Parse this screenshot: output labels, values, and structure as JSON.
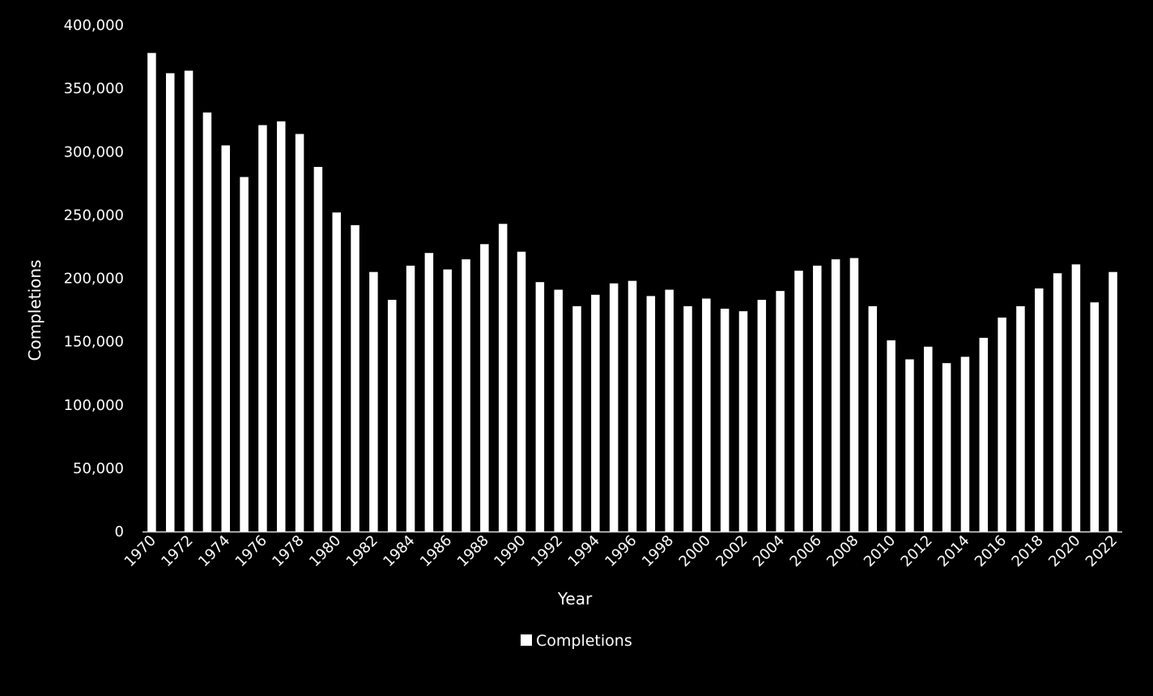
{
  "chart_data": {
    "type": "bar",
    "title": "",
    "xlabel": "Year",
    "ylabel": "Completions",
    "ylim": [
      0,
      400000
    ],
    "yticks": [
      0,
      50000,
      100000,
      150000,
      200000,
      250000,
      300000,
      350000,
      400000
    ],
    "ytick_labels": [
      "0",
      "50,000",
      "100,000",
      "150,000",
      "200,000",
      "250,000",
      "300,000",
      "350,000",
      "400,000"
    ],
    "x_tick_labels_shown_every": 2,
    "grid": false,
    "legend": {
      "position": "bottom",
      "entries": [
        "Completions"
      ]
    },
    "categories": [
      "1970",
      "1971",
      "1972",
      "1973",
      "1974",
      "1975",
      "1976",
      "1977",
      "1978",
      "1979",
      "1980",
      "1981",
      "1982",
      "1983",
      "1984",
      "1985",
      "1986",
      "1987",
      "1988",
      "1989",
      "1990",
      "1991",
      "1992",
      "1993",
      "1994",
      "1995",
      "1996",
      "1997",
      "1998",
      "1999",
      "2000",
      "2001",
      "2002",
      "2003",
      "2004",
      "2005",
      "2006",
      "2007",
      "2008",
      "2009",
      "2010",
      "2011",
      "2012",
      "2013",
      "2014",
      "2015",
      "2016",
      "2017",
      "2018",
      "2019",
      "2020",
      "2021",
      "2022"
    ],
    "series": [
      {
        "name": "Completions",
        "color": "#ffffff",
        "values": [
          378000,
          362000,
          364000,
          331000,
          305000,
          280000,
          321000,
          324000,
          314000,
          288000,
          252000,
          242000,
          205000,
          183000,
          210000,
          220000,
          207000,
          215000,
          227000,
          243000,
          221000,
          197000,
          191000,
          178000,
          187000,
          196000,
          198000,
          186000,
          191000,
          178000,
          184000,
          176000,
          174000,
          183000,
          190000,
          206000,
          210000,
          215000,
          216000,
          178000,
          151000,
          136000,
          146000,
          133000,
          138000,
          153000,
          169000,
          178000,
          192000,
          204000,
          211000,
          181000,
          205000
        ]
      }
    ]
  },
  "colors": {
    "background": "#000000",
    "bar": "#ffffff",
    "text": "#ffffff",
    "axis": "#d9d9d9"
  }
}
